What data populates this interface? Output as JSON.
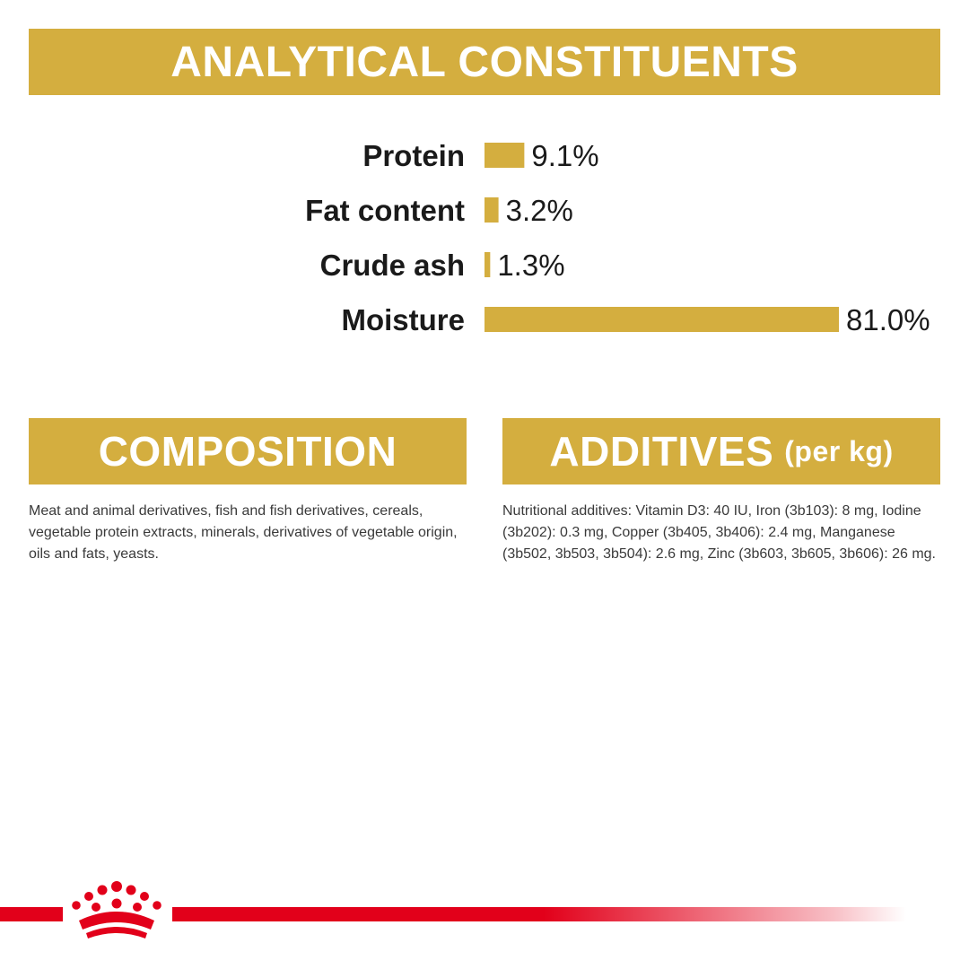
{
  "sections": {
    "analytical_title": "ANALYTICAL CONSTITUENTS",
    "composition_title": "COMPOSITION",
    "additives_title": "ADDITIVES",
    "additives_subtitle": "(per kg)"
  },
  "composition_text": "Meat and animal derivatives, fish and fish derivatives, cereals, vegetable protein extracts, minerals, derivatives of vegetable origin, oils and fats, yeasts.",
  "additives_text": "Nutritional additives: Vitamin D3: 40 IU, Iron (3b103): 8 mg, Iodine (3b202): 0.3 mg, Copper (3b405, 3b406): 2.4 mg, Manganese (3b502, 3b503, 3b504): 2.6 mg, Zinc (3b603, 3b605, 3b606): 26 mg.",
  "colors": {
    "gold": "#d4ae3f",
    "brand_red": "#e2001a",
    "text": "#1a1a1a"
  },
  "logo_icon": "royal-canin-crown-icon",
  "chart_data": {
    "type": "bar",
    "orientation": "horizontal",
    "categories": [
      "Protein",
      "Fat content",
      "Crude ash",
      "Moisture"
    ],
    "values": [
      9.1,
      3.2,
      1.3,
      81.0
    ],
    "value_labels": [
      "9.1%",
      "3.2%",
      "1.3%",
      "81.0%"
    ],
    "unit": "%",
    "xlim": [
      0,
      81
    ],
    "title": "",
    "xlabel": "",
    "ylabel": "",
    "grid": false,
    "bar_color": "#d4ae3f"
  }
}
